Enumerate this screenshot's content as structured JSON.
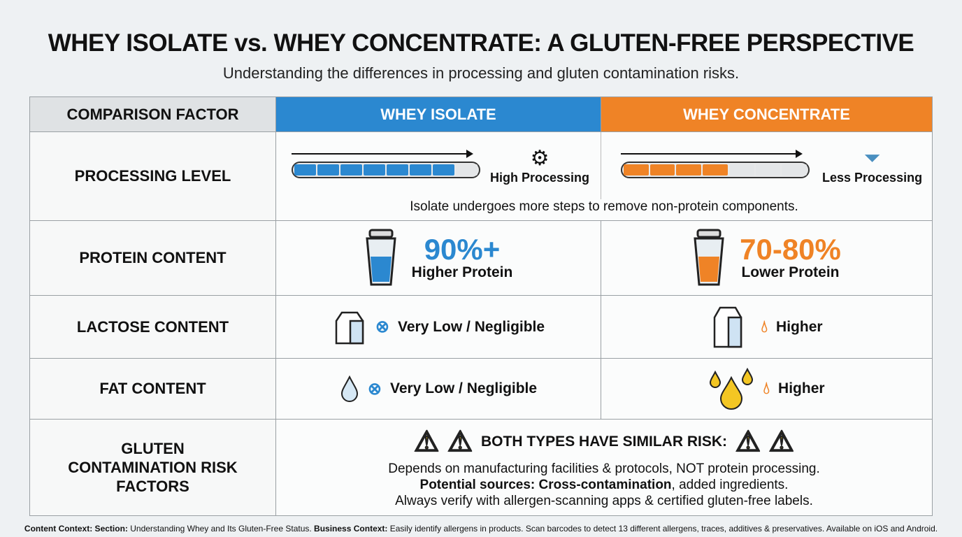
{
  "title": "WHEY ISOLATE vs. WHEY CONCENTRATE: A GLUTEN-FREE PERSPECTIVE",
  "subtitle": "Understanding the differences in processing and gluten contamination risks.",
  "headers": {
    "factor": "COMPARISON FACTOR",
    "isolate": "WHEY ISOLATE",
    "concentrate": "WHEY CONCENTRATE"
  },
  "colors": {
    "isolate": "#2b88d0",
    "concentrate": "#ef8326"
  },
  "processing": {
    "label": "PROCESSING LEVEL",
    "isolate_text": "High Processing",
    "isolate_level": 0.9,
    "isolate_icon": "gear-process-icon",
    "concentrate_text": "Less Processing",
    "concentrate_level": 0.57,
    "concentrate_icon": "funnel-icon",
    "note": "Isolate undergoes more steps to remove non-protein components."
  },
  "protein": {
    "label": "PROTEIN CONTENT",
    "isolate_value": "90%+",
    "isolate_text": "Higher Protein",
    "concentrate_value": "70-80%",
    "concentrate_text": "Lower Protein",
    "icon": "shaker-icon"
  },
  "lactose": {
    "label": "LACTOSE CONTENT",
    "isolate_text": "Very Low / Negligible",
    "concentrate_text": "Higher",
    "icon": "milk-carton-icon"
  },
  "fat": {
    "label": "FAT CONTENT",
    "isolate_text": "Very Low / Negligible",
    "concentrate_text": "Higher",
    "icon": "droplet-icon"
  },
  "gluten": {
    "label": "GLUTEN CONTAMINATION RISK FACTORS",
    "heading": "BOTH TYPES HAVE SIMILAR RISK:",
    "line1": "Depends on manufacturing facilities & protocols, NOT protein processing.",
    "line2_bold": "Potential sources: Cross-contamination",
    "line2_rest": ", added ingredients.",
    "line3": "Always verify with allergen-scanning apps & certified gluten-free labels.",
    "icon": "warning-icon"
  },
  "footer": {
    "label1": "Content Context: Section:",
    "text1": " Understanding Whey and Its Gluten-Free Status.",
    "label2": " Business Context:",
    "text2": " Easily identify allergens in products. Scan barcodes to detect 13 different allergens, traces, additives & preservatives. Available on iOS and Android."
  }
}
